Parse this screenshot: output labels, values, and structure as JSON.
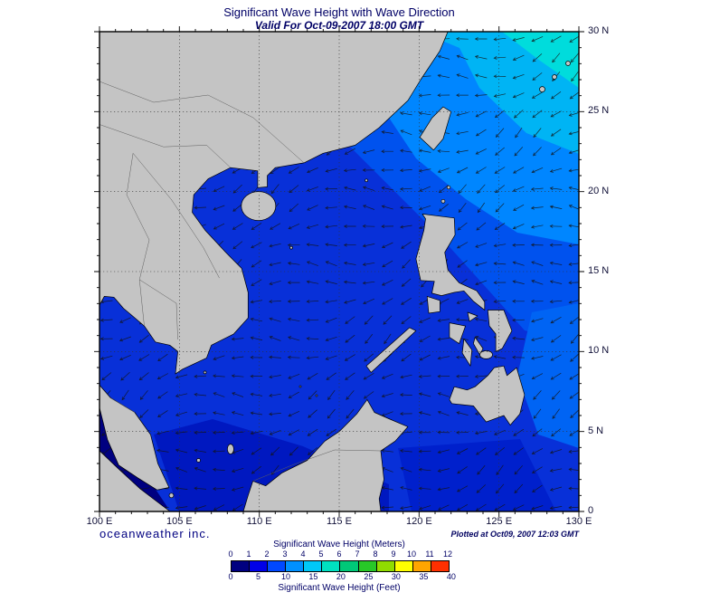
{
  "header": {
    "title": "Significant Wave Height with Wave Direction",
    "subtitle": "Valid For Oct-09-2007 18:00 GMT"
  },
  "footer": {
    "credit": "oceanweather inc.",
    "plotted": "Plotted at Oct09, 2007 12:03 GMT"
  },
  "axes": {
    "lon": [
      "100 E",
      "105 E",
      "110 E",
      "115 E",
      "120 E",
      "125 E",
      "130 E"
    ],
    "lat": [
      "30 N",
      "25 N",
      "20 N",
      "15 N",
      "10 N",
      "5 N",
      "0"
    ]
  },
  "legend": {
    "meters_label": "Significant Wave Height (Meters)",
    "feet_label": "Significant Wave Height (Feet)",
    "meters_ticks": [
      0,
      1,
      2,
      3,
      4,
      5,
      6,
      7,
      8,
      9,
      10,
      11,
      12
    ],
    "feet_ticks": [
      0,
      5,
      10,
      15,
      20,
      25,
      30,
      35,
      40
    ],
    "colors": [
      "#000080",
      "#0000e8",
      "#0048ff",
      "#0090ff",
      "#00c8f8",
      "#00e0c0",
      "#00c878",
      "#28c828",
      "#90dc00",
      "#ffff00",
      "#ffa500",
      "#ff3000"
    ]
  },
  "map": {
    "land_color": "#c4c4c4",
    "coast_color": "#000000",
    "border_color": "#5f5f5f",
    "arrow_color": "#141414",
    "grid_color": "#303030",
    "ocean_base": "#0830d8"
  }
}
